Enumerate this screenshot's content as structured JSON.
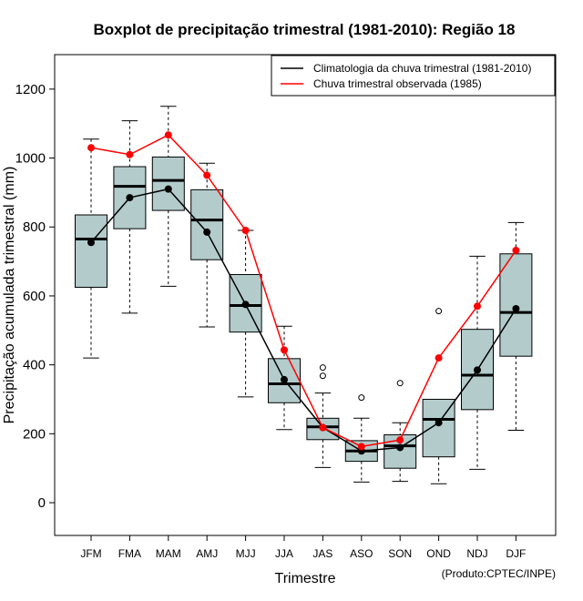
{
  "chart_data": {
    "type": "boxplot",
    "title": "Boxplot de precipitação trimestral (1981-2010): Região 18",
    "xlabel": "Trimestre",
    "ylabel": "Precipitação acumulada trimestral (mm)",
    "ylim": [
      -95,
      1300
    ],
    "yticks": [
      0,
      200,
      400,
      600,
      800,
      1000,
      1200
    ],
    "categories": [
      "JFM",
      "FMA",
      "MAM",
      "AMJ",
      "MJJ",
      "JJA",
      "JAS",
      "ASO",
      "SON",
      "OND",
      "NDJ",
      "DJF"
    ],
    "boxes": [
      {
        "min": 420,
        "q1": 625,
        "median": 765,
        "q3": 835,
        "max": 1055,
        "outliers": []
      },
      {
        "min": 550,
        "q1": 795,
        "median": 918,
        "q3": 975,
        "max": 1108,
        "outliers": []
      },
      {
        "min": 628,
        "q1": 848,
        "median": 935,
        "q3": 1003,
        "max": 1150,
        "outliers": []
      },
      {
        "min": 510,
        "q1": 705,
        "median": 820,
        "q3": 908,
        "max": 985,
        "outliers": []
      },
      {
        "min": 307,
        "q1": 495,
        "median": 572,
        "q3": 662,
        "max": 790,
        "outliers": []
      },
      {
        "min": 212,
        "q1": 290,
        "median": 345,
        "q3": 418,
        "max": 512,
        "outliers": []
      },
      {
        "min": 102,
        "q1": 183,
        "median": 220,
        "q3": 245,
        "max": 318,
        "outliers": [
          368,
          392
        ]
      },
      {
        "min": 60,
        "q1": 120,
        "median": 150,
        "q3": 180,
        "max": 245,
        "outliers": [
          305
        ]
      },
      {
        "min": 62,
        "q1": 100,
        "median": 165,
        "q3": 197,
        "max": 232,
        "outliers": [
          347
        ]
      },
      {
        "min": 55,
        "q1": 133,
        "median": 242,
        "q3": 300,
        "max": 300,
        "outliers": [
          556
        ]
      },
      {
        "min": 97,
        "q1": 270,
        "median": 370,
        "q3": 503,
        "max": 715,
        "outliers": []
      },
      {
        "min": 210,
        "q1": 425,
        "median": 552,
        "q3": 722,
        "max": 813,
        "outliers": []
      }
    ],
    "series": [
      {
        "name": "Climatologia da chuva trimestral (1981-2010)",
        "color": "#000000",
        "values": [
          755,
          885,
          910,
          785,
          575,
          357,
          218,
          150,
          160,
          232,
          385,
          563
        ]
      },
      {
        "name": "Chuva trimestral observada (1985)",
        "color": "#ff0000",
        "values": [
          1030,
          1010,
          1067,
          950,
          790,
          443,
          218,
          163,
          182,
          420,
          570,
          732
        ]
      }
    ],
    "box_color": "#b3cbcb",
    "legend_position": "top-right",
    "credit": "(Produto:CPTEC/INPE)"
  }
}
